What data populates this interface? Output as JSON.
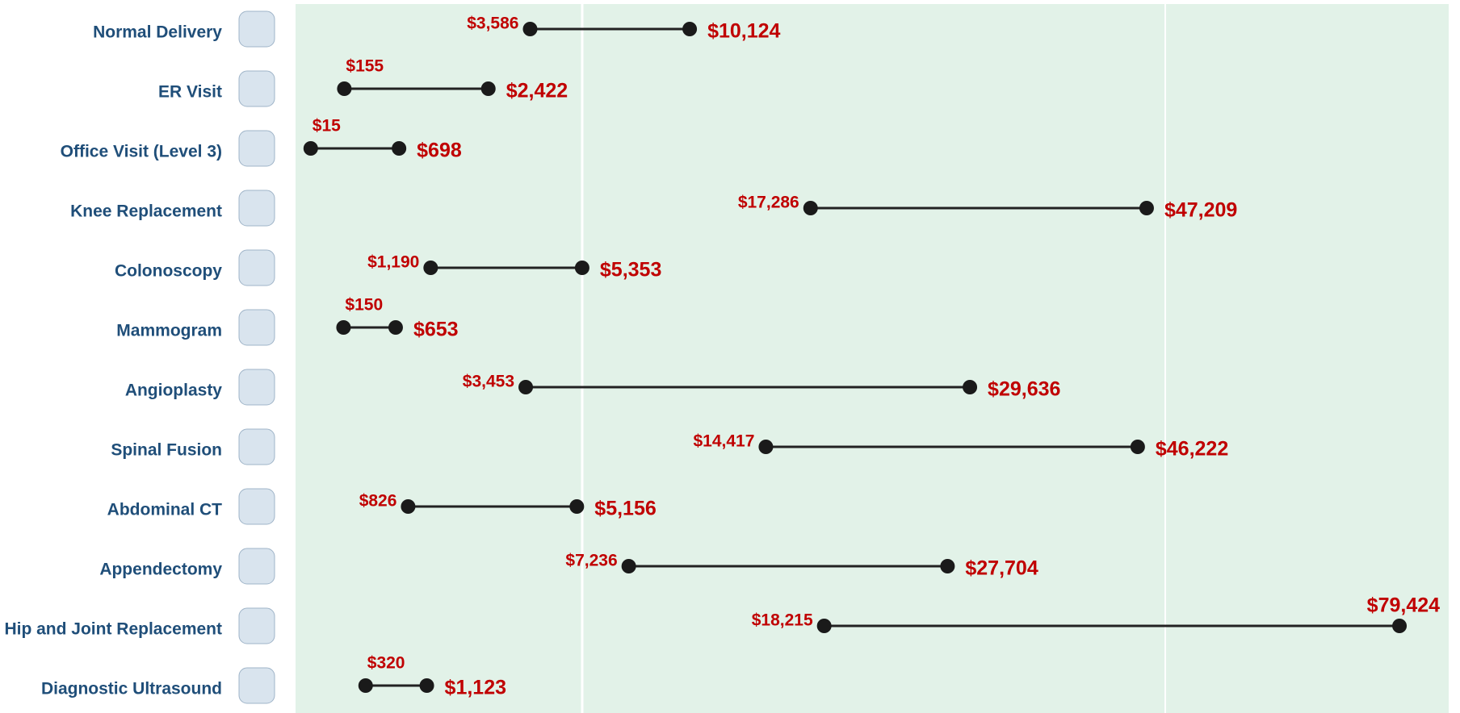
{
  "chart_data": {
    "type": "dumbbell",
    "categories": [
      "Normal Delivery",
      "ER Visit",
      "Office Visit (Level 3)",
      "Knee Replacement",
      "Colonoscopy",
      "Mammogram",
      "Angioplasty",
      "Spinal Fusion",
      "Abdominal CT",
      "Appendectomy",
      "Hip and Joint Replacement",
      "Diagnostic Ultrasound"
    ],
    "series": [
      {
        "color": "#c00000",
        "values": [
          3586,
          155,
          15,
          17286,
          1190,
          150,
          3453,
          14417,
          826,
          7236,
          18215,
          320
        ],
        "value_labels": [
          "$3,586",
          "$155",
          "$15",
          "$17,286",
          "$1,190",
          "$150",
          "$3,453",
          "$14,417",
          "$826",
          "$7,236",
          "$18,215",
          "$320"
        ]
      },
      {
        "color": "#c00000",
        "values": [
          10124,
          2422,
          698,
          47209,
          5353,
          653,
          29636,
          46222,
          5156,
          27704,
          79424,
          1123
        ],
        "value_labels": [
          "$10,124",
          "$2,422",
          "$698",
          "$47,209",
          "$5,353",
          "$653",
          "$29,636",
          "$46,222",
          "$5,156",
          "$27,704",
          "$79,424",
          "$1,123"
        ]
      }
    ],
    "xlim": [
      0,
      80000
    ],
    "xscale": "sqrt",
    "dot_color": "#1a1a1a"
  }
}
